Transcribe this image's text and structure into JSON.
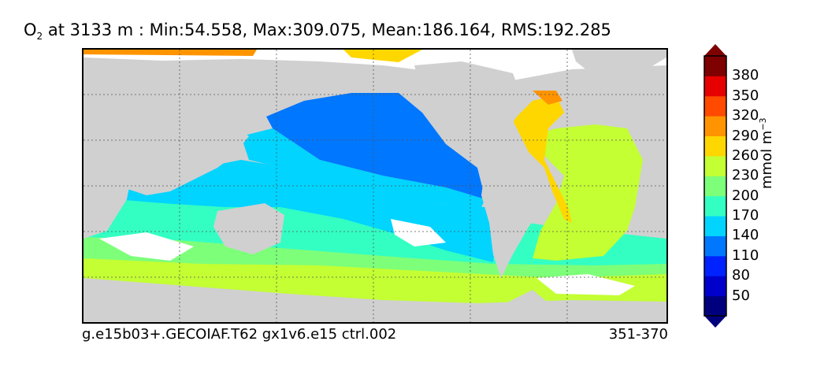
{
  "title": {
    "species": "O",
    "species_sub": "2",
    "text": " at 3133 m : Min:54.558, Max:309.075, Mean:186.164, RMS:192.285"
  },
  "footer": {
    "left": "g.e15b03+.GECOIAF.T62 gx1v6.e15 ctrl.002",
    "right": "351-370"
  },
  "colorbar": {
    "unit_main": "mmol m",
    "unit_sup": "−3",
    "ticks": [
      "50",
      "80",
      "110",
      "140",
      "170",
      "200",
      "230",
      "260",
      "290",
      "320",
      "350",
      "380"
    ],
    "colors": [
      "#00007f",
      "#0000cc",
      "#0022ff",
      "#0077ff",
      "#00d4ff",
      "#33ffc3",
      "#7dff7a",
      "#c3ff33",
      "#ffd700",
      "#ff9400",
      "#ff4a00",
      "#e60000",
      "#7f0000"
    ]
  },
  "map": {
    "land_color": "#d0d0d0",
    "missing_color": "#ffffff"
  }
}
